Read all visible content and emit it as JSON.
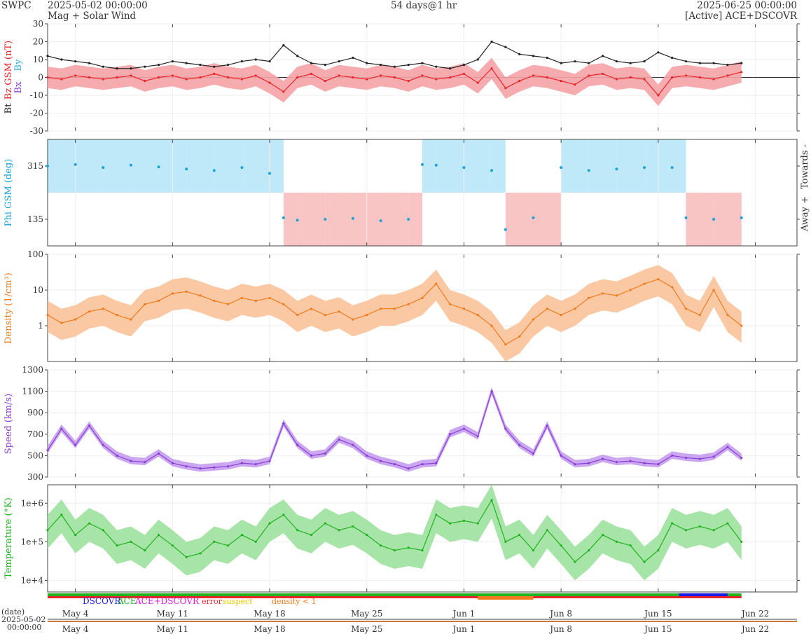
{
  "header": {
    "agency": "SWPC",
    "start": "2025-05-02 00:00:00",
    "product": "Mag + Solar Wind",
    "span": "54 days@1 hr",
    "end": "2025-06-25 00:00:00",
    "source": "[Active] ACE+DSCOVR"
  },
  "colors": {
    "bt": "#222222",
    "bz": "#e8232a",
    "bz_fill": "#f5a3a6",
    "bx": "#8a3fd1",
    "by": "#2ab0e8",
    "phi": "#1aa3d9",
    "towards_fill": "#bfe9f8",
    "away_fill": "#f9c4c4",
    "density": "#f07b1c",
    "density_fill": "#f9c299",
    "speed": "#8a3fd1",
    "speed_fill": "#c59cf0",
    "temperature": "#1fb31f",
    "temperature_fill": "#9de19d"
  },
  "chart_data": [
    {
      "type": "line",
      "panel": "mag",
      "ylabel_parts": [
        "Bt",
        "Bz GSM (nT)",
        "Bx",
        "By"
      ],
      "ylim": [
        -30,
        30
      ],
      "yticks": [
        30,
        20,
        10,
        0,
        -10,
        -20,
        -30
      ],
      "grid": true,
      "series": [
        {
          "name": "Bt",
          "x_day": [
            0,
            1,
            2,
            3,
            4,
            5,
            6,
            7,
            8,
            9,
            10,
            11,
            12,
            13,
            14,
            15,
            16,
            17,
            18,
            19,
            20,
            21,
            22,
            23,
            24,
            25,
            26,
            27,
            28,
            29,
            30,
            31,
            32,
            33,
            34,
            35,
            36,
            37,
            38,
            39,
            40,
            41,
            42,
            43,
            44,
            45,
            46,
            47,
            48,
            49,
            50
          ],
          "values": [
            12,
            10,
            9,
            8,
            6,
            5,
            5,
            6,
            7,
            9,
            8,
            7,
            6,
            7,
            9,
            10,
            9,
            18,
            12,
            8,
            7,
            9,
            11,
            8,
            7,
            6,
            7,
            8,
            6,
            5,
            7,
            10,
            20,
            17,
            13,
            12,
            11,
            8,
            9,
            8,
            12,
            9,
            8,
            9,
            14,
            11,
            9,
            8,
            8,
            7,
            8
          ]
        },
        {
          "name": "Bz GSM",
          "x_day": [
            0,
            1,
            2,
            3,
            4,
            5,
            6,
            7,
            8,
            9,
            10,
            11,
            12,
            13,
            14,
            15,
            16,
            17,
            18,
            19,
            20,
            21,
            22,
            23,
            24,
            25,
            26,
            27,
            28,
            29,
            30,
            31,
            32,
            33,
            34,
            35,
            36,
            37,
            38,
            39,
            40,
            41,
            42,
            43,
            44,
            45,
            46,
            47,
            48,
            49,
            50
          ],
          "values": [
            0,
            -1,
            1,
            0,
            -1,
            0,
            1,
            -2,
            0,
            1,
            -1,
            0,
            2,
            0,
            -1,
            1,
            -3,
            -8,
            0,
            2,
            -2,
            1,
            0,
            -1,
            1,
            0,
            -2,
            1,
            -1,
            0,
            2,
            -3,
            5,
            -6,
            -2,
            1,
            0,
            -2,
            -4,
            1,
            2,
            -1,
            0,
            -1,
            -10,
            0,
            1,
            0,
            -1,
            1,
            3
          ]
        }
      ]
    },
    {
      "type": "scatter",
      "panel": "phi",
      "ylabel": "Phi GSM (deg)",
      "yticks": [
        315,
        135
      ],
      "ylim": [
        45,
        405
      ],
      "right_labels": [
        "Towards -",
        "Away +"
      ],
      "x_day": [
        0,
        2,
        4,
        6,
        8,
        10,
        12,
        14,
        16,
        17,
        18,
        20,
        22,
        24,
        26,
        27,
        28,
        30,
        32,
        33,
        35,
        37,
        39,
        41,
        43,
        45,
        46,
        48,
        50
      ],
      "values": [
        315,
        320,
        310,
        318,
        312,
        305,
        300,
        310,
        290,
        140,
        132,
        135,
        138,
        130,
        135,
        320,
        318,
        310,
        300,
        100,
        140,
        310,
        300,
        305,
        310,
        310,
        140,
        135,
        140
      ]
    },
    {
      "type": "line",
      "panel": "density",
      "ylabel": "Density (1/cm³)",
      "yscale": "log",
      "ylim": [
        0.1,
        100
      ],
      "ytick_labels": [
        "100",
        "10",
        "1"
      ],
      "x_day": [
        0,
        1,
        2,
        3,
        4,
        5,
        6,
        7,
        8,
        9,
        10,
        11,
        12,
        13,
        14,
        15,
        16,
        17,
        18,
        19,
        20,
        21,
        22,
        23,
        24,
        25,
        26,
        27,
        28,
        29,
        30,
        31,
        32,
        33,
        34,
        35,
        36,
        37,
        38,
        39,
        40,
        41,
        42,
        43,
        44,
        45,
        46,
        47,
        48,
        49,
        50
      ],
      "values": [
        2,
        1.2,
        1.5,
        2.5,
        3,
        2,
        1.5,
        4,
        5,
        8,
        9,
        7,
        5,
        4,
        6,
        5,
        6,
        4,
        2,
        3,
        2,
        2.5,
        1.5,
        2,
        3,
        3,
        4,
        6,
        15,
        4,
        3,
        2,
        1,
        0.3,
        0.5,
        1.5,
        3,
        2,
        3,
        6,
        8,
        7,
        10,
        15,
        20,
        12,
        3,
        2,
        10,
        2,
        1
      ]
    },
    {
      "type": "line",
      "panel": "speed",
      "ylabel": "Speed (km/s)",
      "ylim": [
        300,
        1300
      ],
      "yticks": [
        1300,
        1100,
        900,
        700,
        500,
        300
      ],
      "x_day": [
        0,
        1,
        2,
        3,
        4,
        5,
        6,
        7,
        8,
        9,
        10,
        11,
        12,
        13,
        14,
        15,
        16,
        17,
        18,
        19,
        20,
        21,
        22,
        23,
        24,
        25,
        26,
        27,
        28,
        29,
        30,
        31,
        32,
        33,
        34,
        35,
        36,
        37,
        38,
        39,
        40,
        41,
        42,
        43,
        44,
        45,
        46,
        47,
        48,
        49,
        50
      ],
      "values": [
        550,
        750,
        600,
        780,
        600,
        500,
        450,
        440,
        520,
        430,
        400,
        380,
        390,
        400,
        430,
        420,
        450,
        800,
        600,
        500,
        520,
        650,
        600,
        500,
        450,
        420,
        380,
        420,
        430,
        700,
        750,
        680,
        1100,
        750,
        600,
        520,
        780,
        500,
        420,
        430,
        470,
        440,
        450,
        430,
        420,
        500,
        480,
        470,
        490,
        580,
        480
      ]
    },
    {
      "type": "line",
      "panel": "temperature",
      "ylabel": "Temperature (°K)",
      "yscale": "log",
      "ylim": [
        5000,
        3000000
      ],
      "ytick_labels": [
        "1e+6",
        "1e+5",
        "1e+4"
      ],
      "x_day": [
        0,
        1,
        2,
        3,
        4,
        5,
        6,
        7,
        8,
        9,
        10,
        11,
        12,
        13,
        14,
        15,
        16,
        17,
        18,
        19,
        20,
        21,
        22,
        23,
        24,
        25,
        26,
        27,
        28,
        29,
        30,
        31,
        32,
        33,
        34,
        35,
        36,
        37,
        38,
        39,
        40,
        41,
        42,
        43,
        44,
        45,
        46,
        47,
        48,
        49,
        50
      ],
      "values": [
        200000,
        500000,
        150000,
        300000,
        200000,
        80000,
        100000,
        60000,
        150000,
        80000,
        40000,
        50000,
        100000,
        80000,
        150000,
        100000,
        300000,
        500000,
        200000,
        150000,
        300000,
        200000,
        250000,
        150000,
        80000,
        60000,
        70000,
        60000,
        500000,
        300000,
        350000,
        300000,
        1200000,
        100000,
        150000,
        60000,
        200000,
        80000,
        30000,
        60000,
        150000,
        100000,
        80000,
        30000,
        60000,
        300000,
        200000,
        250000,
        200000,
        300000,
        100000
      ]
    },
    {
      "type": "table",
      "panel": "source_status",
      "legend": [
        "DSCOVR",
        "ACE",
        "ACE+DSCOVR",
        "error",
        "suspect",
        "density < 1"
      ],
      "legend_colors": [
        "#1a1ae6",
        "#1fb31f",
        "#d61fd6",
        "#e8232a",
        "#e6c800",
        "#f07b1c"
      ]
    }
  ],
  "xaxis": {
    "date_label": "(date)",
    "start_label": "2025-05-02",
    "start_time": "00:00:00",
    "ticks": [
      {
        "day": 2,
        "label": "May 4"
      },
      {
        "day": 9,
        "label": "May 11"
      },
      {
        "day": 16,
        "label": "May 18"
      },
      {
        "day": 23,
        "label": "May 25"
      },
      {
        "day": 30,
        "label": "Jun 1"
      },
      {
        "day": 37,
        "label": "Jun 8"
      },
      {
        "day": 44,
        "label": "Jun 15"
      },
      {
        "day": 51,
        "label": "Jun 22"
      }
    ]
  }
}
